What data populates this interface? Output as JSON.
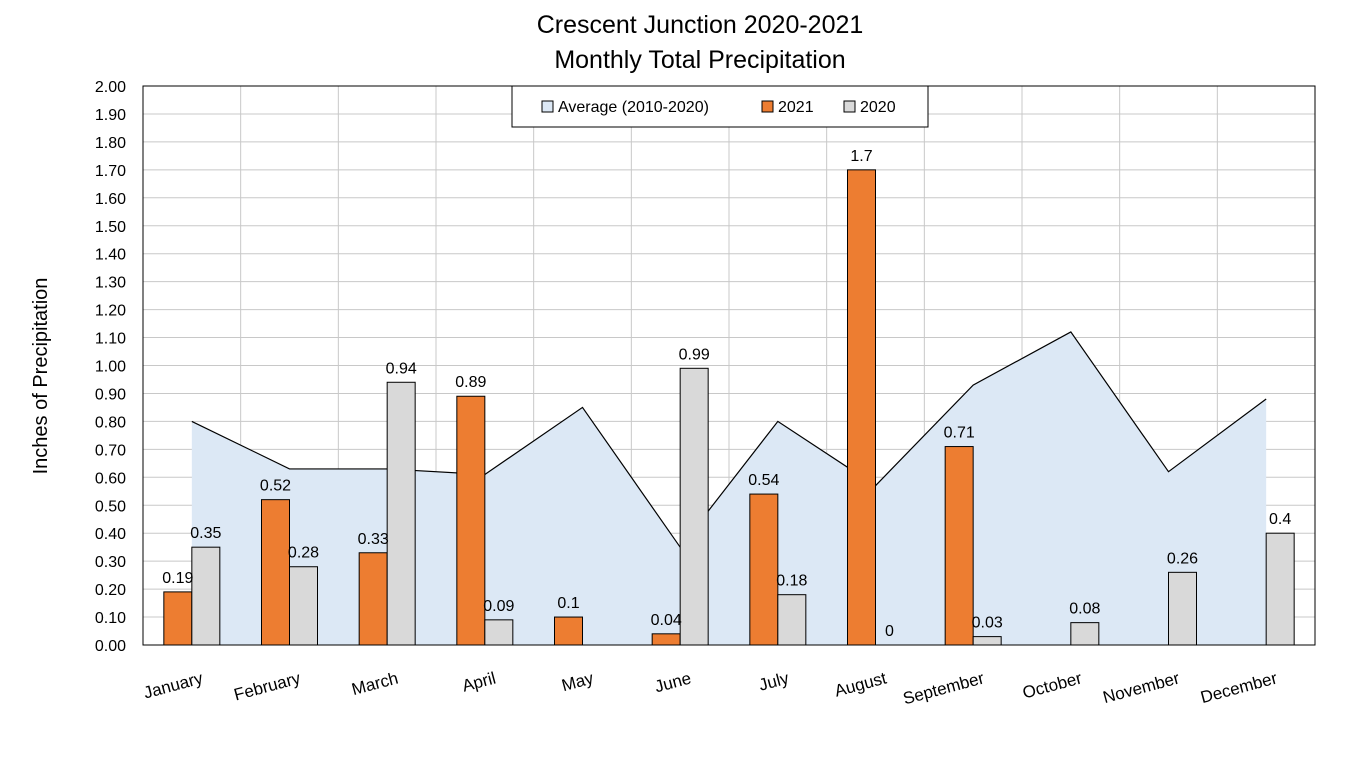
{
  "chart_data": {
    "type": "bar",
    "title_line1": "Crescent Junction 2020-2021",
    "title_line2": "Monthly Total Precipitation",
    "xlabel": "",
    "ylabel": "Inches of Precipitation",
    "ylim": [
      0,
      2.0
    ],
    "y_tick_step": 0.1,
    "y_tick_labels": [
      "0.00",
      "0.10",
      "0.20",
      "0.30",
      "0.40",
      "0.50",
      "0.60",
      "0.70",
      "0.80",
      "0.90",
      "1.00",
      "1.10",
      "1.20",
      "1.30",
      "1.40",
      "1.50",
      "1.60",
      "1.70",
      "1.80",
      "1.90",
      "2.00"
    ],
    "grid": true,
    "legend_position": "top-center",
    "categories": [
      "January",
      "February",
      "March",
      "April",
      "May",
      "June",
      "July",
      "August",
      "September",
      "October",
      "November",
      "December"
    ],
    "series": [
      {
        "name": "Average (2010-2020)",
        "kind": "area",
        "color": "#dce8f5",
        "stroke": "#000000",
        "values": [
          0.8,
          0.63,
          0.63,
          0.61,
          0.85,
          0.35,
          0.8,
          0.57,
          0.93,
          1.12,
          0.62,
          0.88
        ]
      },
      {
        "name": "2021",
        "kind": "bar",
        "color": "#ed7d31",
        "values": [
          0.19,
          0.52,
          0.33,
          0.89,
          0.1,
          0.04,
          0.54,
          1.7,
          0.71,
          null,
          null,
          null
        ],
        "labels": [
          "0.19",
          "0.52",
          "0.33",
          "0.89",
          "0.1",
          "0.04",
          "0.54",
          "1.7",
          "0.71",
          "",
          "",
          ""
        ]
      },
      {
        "name": "2020",
        "kind": "bar",
        "color": "#d9d9d9",
        "values": [
          0.35,
          0.28,
          0.94,
          0.09,
          null,
          0.99,
          0.18,
          0,
          0.03,
          0.08,
          0.26,
          0.4
        ],
        "labels": [
          "0.35",
          "0.28",
          "0.94",
          "0.09",
          "",
          "0.99",
          "0.18",
          "0",
          "0.03",
          "0.08",
          "0.26",
          "0.4"
        ]
      }
    ]
  }
}
